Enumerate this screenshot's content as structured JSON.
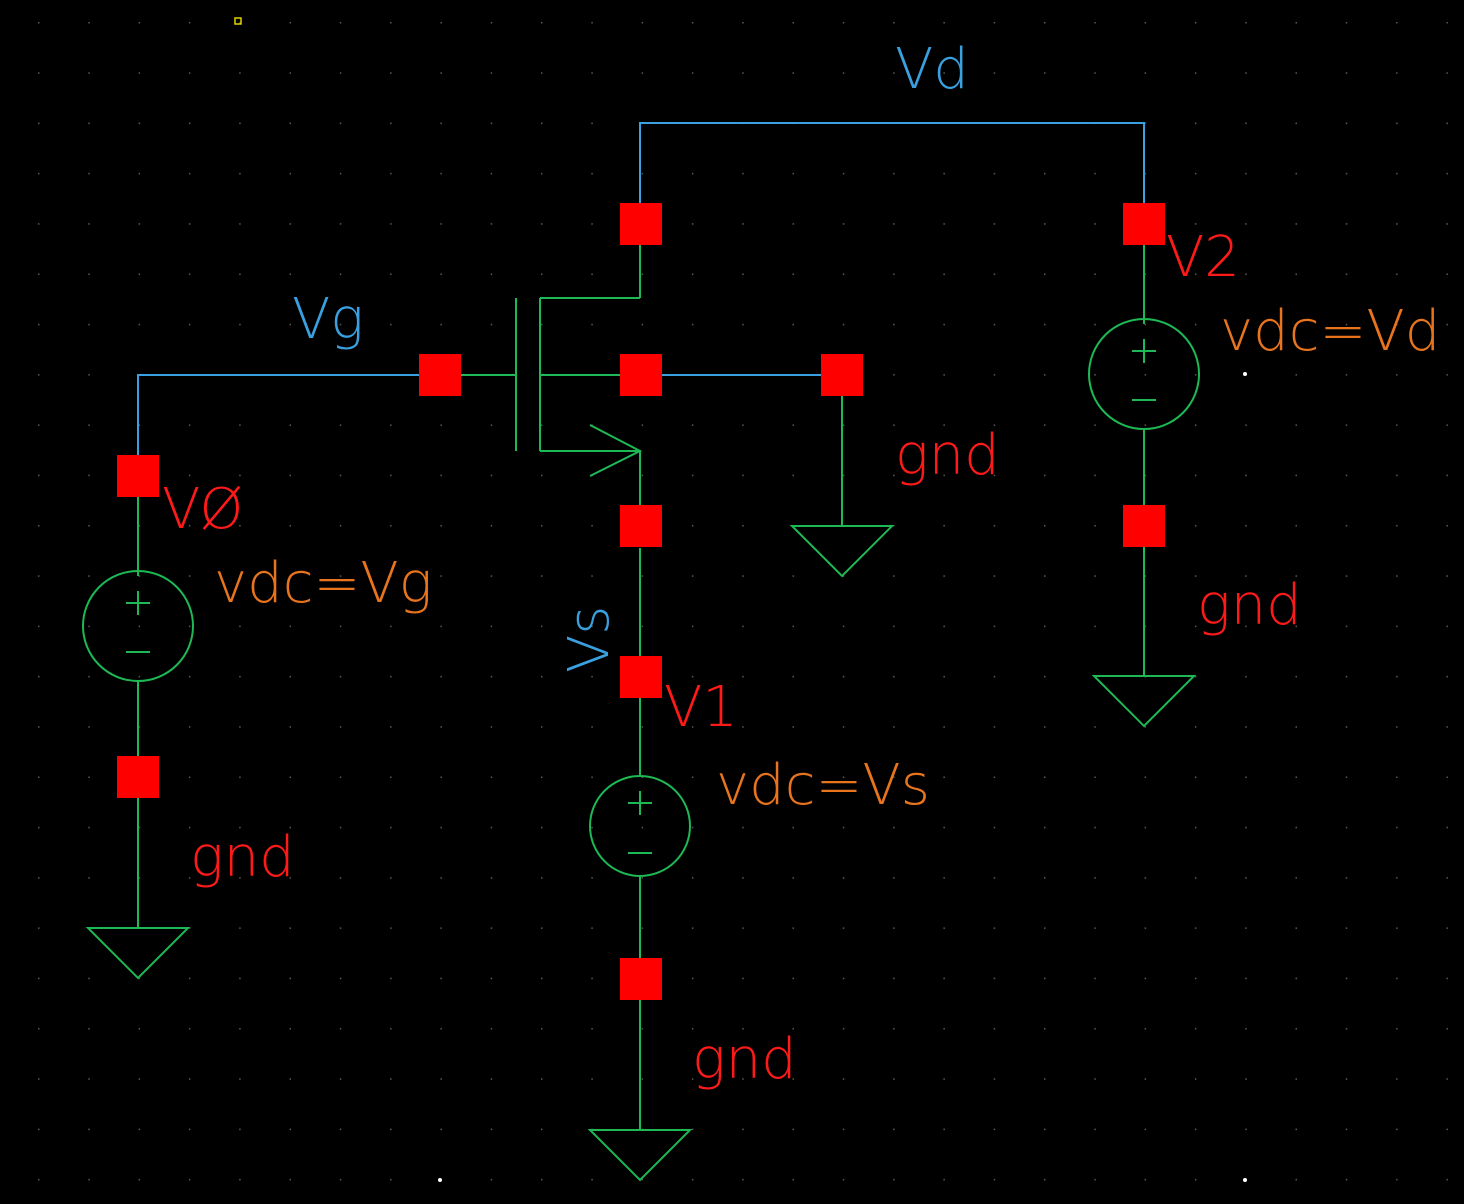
{
  "nets": {
    "drain": "Vd",
    "gate": "Vg",
    "source": "Vs"
  },
  "instances": {
    "gate_source": {
      "name": "VØ",
      "param": "vdc=Vg"
    },
    "source_source": {
      "name": "V1",
      "param": "vdc=Vs"
    },
    "drain_source": {
      "name": "V2",
      "param": "vdc=Vd"
    }
  },
  "grounds": {
    "gate_ground": "gnd",
    "bulk_ground": "gnd",
    "source_ground": "gnd",
    "drain_ground": "gnd"
  },
  "colors": {
    "background": "#000000",
    "net_wire": "#3aa0e0",
    "device": "#1db954",
    "pin": "#ff0000",
    "instance_label": "#ff1a1a",
    "parameter_label": "#e8741e"
  }
}
